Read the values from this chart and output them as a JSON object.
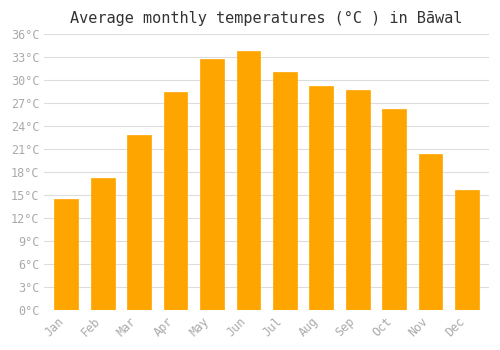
{
  "title": "Average monthly temperatures (°C ) in Bāwal",
  "months": [
    "Jan",
    "Feb",
    "Mar",
    "Apr",
    "May",
    "Jun",
    "Jul",
    "Aug",
    "Sep",
    "Oct",
    "Nov",
    "Dec"
  ],
  "temperatures": [
    14.5,
    17.2,
    22.8,
    28.5,
    32.8,
    33.8,
    31.0,
    29.2,
    28.7,
    26.2,
    20.4,
    15.7
  ],
  "bar_color": "#FFA500",
  "bar_edge_color": "#E08000",
  "ylim": [
    0,
    36
  ],
  "yticks": [
    0,
    3,
    6,
    9,
    12,
    15,
    18,
    21,
    24,
    27,
    30,
    33,
    36
  ],
  "ytick_labels": [
    "0°C",
    "3°C",
    "6°C",
    "9°C",
    "12°C",
    "15°C",
    "18°C",
    "21°C",
    "24°C",
    "27°C",
    "30°C",
    "33°C",
    "36°C"
  ],
  "background_color": "#ffffff",
  "grid_color": "#dddddd",
  "tick_label_color": "#aaaaaa",
  "title_color": "#333333",
  "title_fontsize": 11,
  "tick_fontsize": 8.5,
  "font_family": "monospace"
}
